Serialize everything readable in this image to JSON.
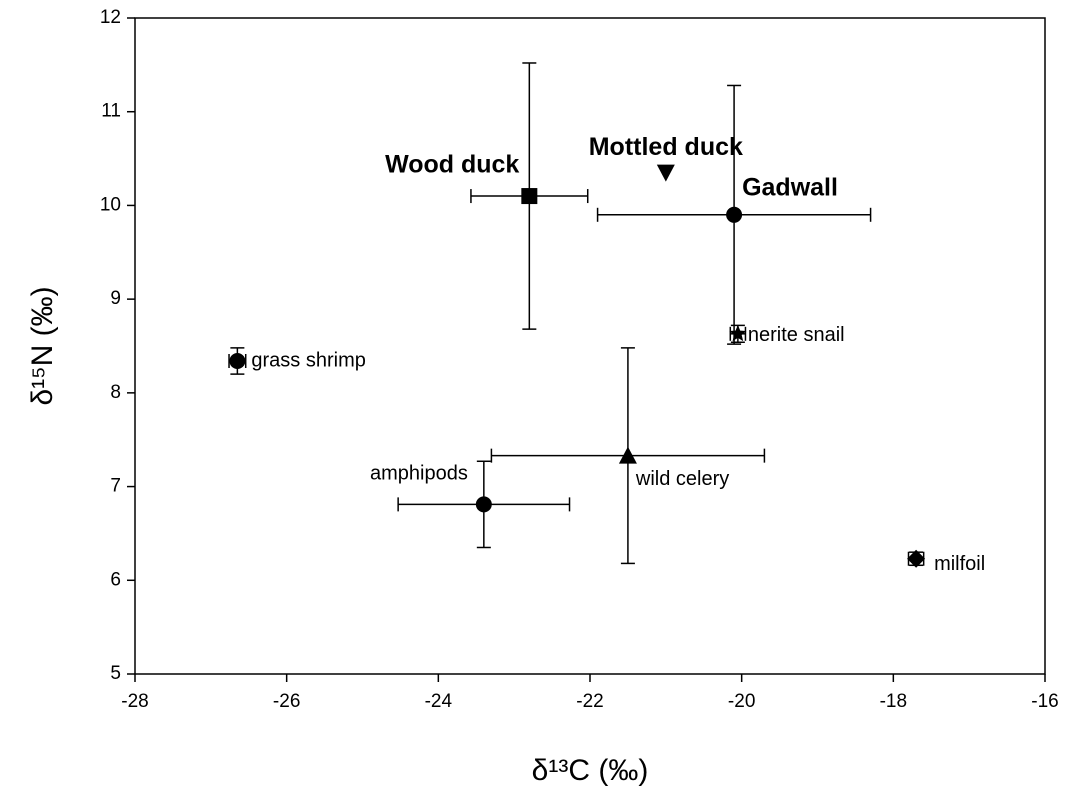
{
  "chart_data": {
    "type": "scatter",
    "x_label": "δ¹³C (‰)",
    "y_label": "δ¹⁵N (‰)",
    "xlim": [
      -28,
      -16
    ],
    "xticks": [
      -28,
      -26,
      -24,
      -22,
      -20,
      -18,
      -16
    ],
    "ylim": [
      5,
      12
    ],
    "yticks": [
      5,
      6,
      7,
      8,
      9,
      10,
      11,
      12
    ],
    "color": "#000000",
    "series": [
      {
        "name": "Wood duck",
        "bold": true,
        "marker": "square",
        "x": [
          -22.8
        ],
        "values": [
          10.1
        ],
        "xerr": [
          0.77
        ],
        "yerr": [
          1.42
        ]
      },
      {
        "name": "Mottled duck",
        "bold": true,
        "marker": "triangle-down",
        "x": [
          -21.0
        ],
        "values": [
          10.35
        ]
      },
      {
        "name": "Gadwall",
        "bold": true,
        "marker": "circle",
        "x": [
          -20.1
        ],
        "values": [
          9.9
        ],
        "xerr": [
          1.8
        ],
        "yerr": [
          1.38
        ]
      },
      {
        "name": "nerite snail",
        "bold": false,
        "marker": "star",
        "x": [
          -20.05
        ],
        "values": [
          8.63
        ],
        "xerr": [
          0.1
        ],
        "yerr": [
          0.09
        ]
      },
      {
        "name": "grass shrimp",
        "bold": false,
        "marker": "circle",
        "x": [
          -26.65
        ],
        "values": [
          8.34
        ],
        "xerr": [
          0.11
        ],
        "yerr": [
          0.14
        ]
      },
      {
        "name": "amphipods",
        "bold": false,
        "marker": "circle",
        "x": [
          -23.4
        ],
        "values": [
          6.81
        ],
        "xerr": [
          1.13
        ],
        "yerr": [
          0.46
        ]
      },
      {
        "name": "wild celery",
        "bold": false,
        "marker": "triangle",
        "x": [
          -21.5
        ],
        "values": [
          7.33
        ],
        "xerr": [
          1.8
        ],
        "yerr": [
          1.15
        ]
      },
      {
        "name": "milfoil",
        "bold": false,
        "marker": "diamond",
        "x": [
          -17.7
        ],
        "values": [
          6.23
        ],
        "xerr": [
          0.1
        ],
        "yerr": [
          0.07
        ]
      }
    ]
  }
}
